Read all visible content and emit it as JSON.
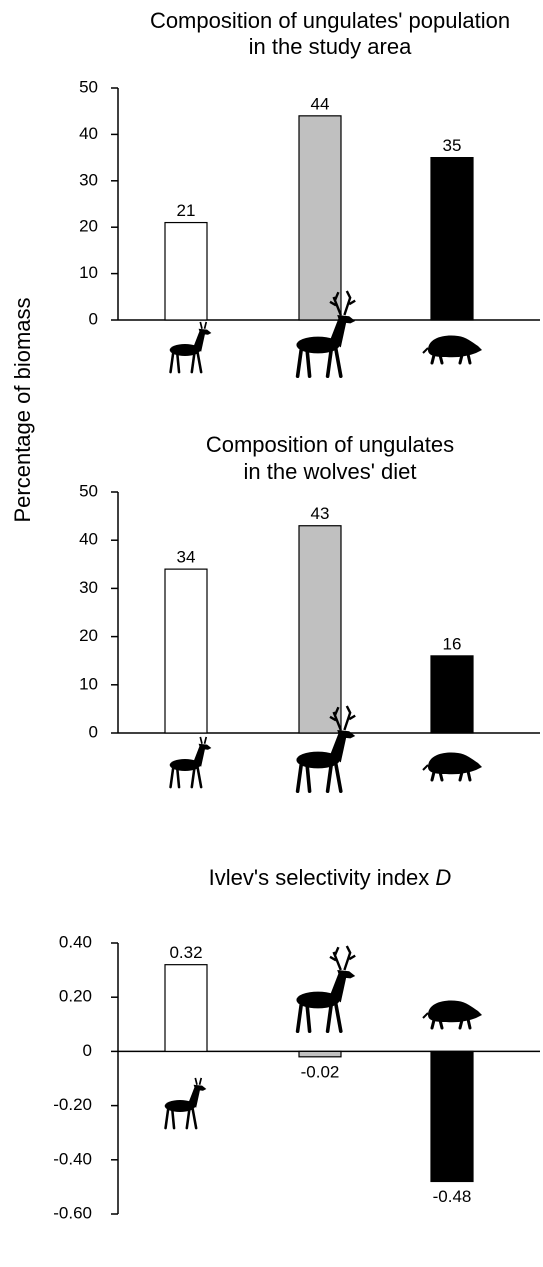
{
  "chart_data": [
    {
      "type": "bar",
      "title": [
        "Composition of ungulates' population",
        "in the study area"
      ],
      "y_label": "Percentage of biomass",
      "categories": [
        null,
        null,
        null
      ],
      "values": [
        21,
        44,
        35
      ],
      "colors": [
        "#ffffff",
        "#c0c0c0",
        "#000000"
      ],
      "ylim": [
        0,
        50
      ],
      "yticks": [
        0,
        10,
        20,
        30,
        40,
        50
      ]
    },
    {
      "type": "bar",
      "title": [
        "Composition of ungulates",
        "in the wolves' diet"
      ],
      "categories": [
        null,
        null,
        null
      ],
      "values": [
        34,
        43,
        16
      ],
      "colors": [
        "#ffffff",
        "#c0c0c0",
        "#000000"
      ],
      "ylim": [
        0,
        50
      ],
      "yticks": [
        0,
        10,
        20,
        30,
        40,
        50
      ]
    },
    {
      "type": "bar",
      "title": [
        "Ivlev's selectivity index"
      ],
      "title_italic": "D",
      "categories": [
        null,
        null,
        null
      ],
      "values": [
        0.32,
        -0.02,
        -0.48
      ],
      "colors": [
        "#ffffff",
        "#c0c0c0",
        "#000000"
      ],
      "ylim": [
        -0.6,
        0.4
      ],
      "yticks": [
        {
          "value": -0.6,
          "label": "-0.60"
        },
        {
          "value": -0.4,
          "label": "-0.40"
        },
        {
          "value": -0.2,
          "label": "-0.20"
        },
        0,
        {
          "value": 0.2,
          "label": "0.20"
        },
        {
          "value": 0.4,
          "label": "0.40"
        }
      ]
    }
  ]
}
